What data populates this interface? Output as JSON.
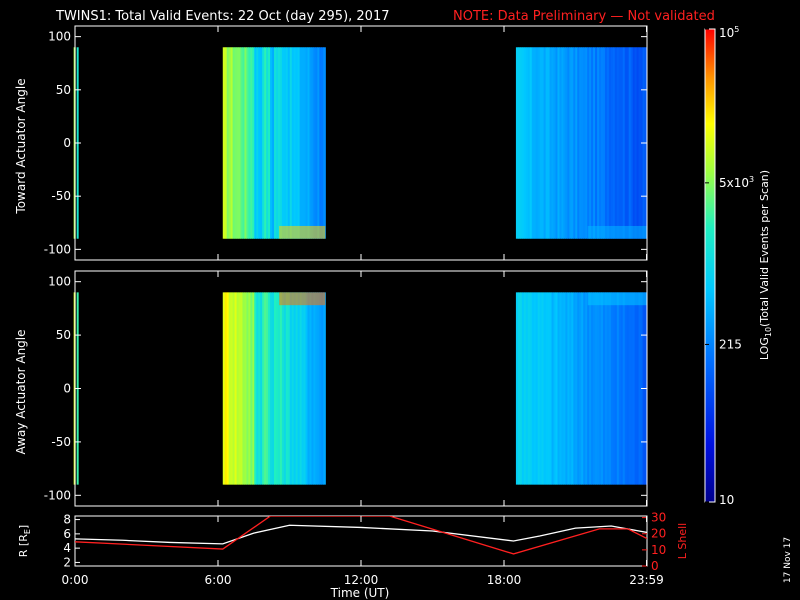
{
  "header": {
    "title": "TWINS1: Total Valid Events: 22 Oct (day 295), 2017",
    "note": "NOTE: Data Preliminary — Not validated"
  },
  "footer": {
    "date_stamp": "17 Nov 17"
  },
  "colors": {
    "background": "#000000",
    "axis": "#ffffff",
    "note": "#ff2020",
    "lshell": "#ff2020",
    "radius": "#ffffff"
  },
  "chart_data": [
    {
      "type": "heatmap",
      "ylabel": "Toward Actuator Angle",
      "ylim": [
        -110,
        110
      ],
      "yticks": [
        -100,
        -50,
        0,
        50,
        100
      ],
      "xlim": [
        0,
        24
      ],
      "segments": [
        {
          "start": 0.07,
          "end": 0.12,
          "level": 0.55
        },
        {
          "start": 6.2,
          "end": 10.5,
          "level": 0.72
        },
        {
          "start": 18.5,
          "end": 23.98,
          "level": 0.3
        }
      ],
      "angle_range": [
        -90,
        90
      ]
    },
    {
      "type": "heatmap",
      "ylabel": "Away Actuator Angle",
      "ylim": [
        -110,
        110
      ],
      "yticks": [
        -100,
        -50,
        0,
        50,
        100
      ],
      "xlim": [
        0,
        24
      ],
      "segments": [
        {
          "start": 0.07,
          "end": 0.12,
          "level": 0.6
        },
        {
          "start": 6.2,
          "end": 10.5,
          "level": 0.8
        },
        {
          "start": 18.5,
          "end": 23.98,
          "level": 0.33
        }
      ],
      "angle_range": [
        -90,
        90
      ]
    },
    {
      "type": "line",
      "xlabel": "Time (UT)",
      "xticks": [
        "0:00",
        "6:00",
        "12:00",
        "18:00",
        "23:59"
      ],
      "xtick_values": [
        0,
        6,
        12,
        18,
        23.98
      ],
      "xlim": [
        0,
        24
      ],
      "y_left": {
        "label": "R [RE]",
        "label_main": "R [R",
        "label_sub": "E",
        "label_end": "]",
        "ticks": [
          2,
          4,
          6,
          8
        ],
        "lim": [
          1.5,
          8.5
        ]
      },
      "y_right": {
        "label": "L Shell",
        "ticks": [
          0,
          10,
          20,
          30
        ],
        "lim": [
          0,
          31
        ]
      },
      "series": [
        {
          "name": "R",
          "x": [
            0,
            2,
            4,
            6.2,
            7.5,
            9,
            12,
            15,
            18.4,
            19.5,
            21,
            22.5,
            24
          ],
          "y": [
            5.3,
            5.1,
            4.8,
            4.6,
            6.1,
            7.2,
            6.9,
            6.4,
            5.0,
            5.7,
            6.8,
            7.1,
            6.2
          ]
        },
        {
          "name": "L Shell",
          "x": [
            0,
            6.2,
            8.2,
            8.3,
            13.2,
            18.4,
            22,
            23.2,
            24
          ],
          "y": [
            15,
            10.5,
            31,
            31,
            31,
            7.5,
            23,
            23,
            17
          ]
        }
      ]
    }
  ],
  "colorbar": {
    "label_main": "LOG",
    "label_sub": "10",
    "label_rest": "(Total Valid Events per Scan)",
    "tick_labels": [
      {
        "value": 10,
        "text": "10"
      },
      {
        "value": 215,
        "text": "215"
      },
      {
        "value": 5000,
        "text_main": "5x10",
        "text_sup": "3"
      },
      {
        "value": 100000,
        "text_main": "10",
        "text_sup": "5"
      }
    ],
    "range": [
      10,
      100000
    ]
  }
}
